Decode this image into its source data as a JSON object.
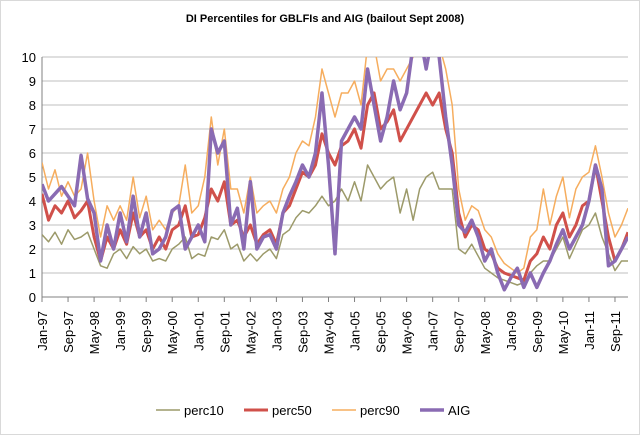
{
  "chart_data": {
    "type": "line",
    "title": "DI Percentiles for GBLFIs and AIG (bailout Sept 2008)",
    "categories": [
      "Jan-97",
      null,
      null,
      null,
      "Sep-97",
      null,
      null,
      null,
      "May-98",
      null,
      null,
      null,
      "Jan-99",
      null,
      null,
      null,
      "Sep-99",
      null,
      null,
      null,
      "May-00",
      null,
      null,
      null,
      "Jan-01",
      null,
      null,
      null,
      "Sep-01",
      null,
      null,
      null,
      "May-02",
      null,
      null,
      null,
      "Jan-03",
      null,
      null,
      null,
      "Sep-03",
      null,
      null,
      null,
      "May-04",
      null,
      null,
      null,
      "Jan-05",
      null,
      null,
      null,
      "Sep-05",
      null,
      null,
      null,
      "May-06",
      null,
      null,
      null,
      "Jan-07",
      null,
      null,
      null,
      "Sep-07",
      null,
      null,
      null,
      "May-08",
      null,
      null,
      null,
      "Jan-09",
      null,
      null,
      null,
      "Sep-09",
      null,
      null,
      null,
      "May-10",
      null,
      null,
      null,
      "Jan-11",
      null,
      null,
      null,
      "Sep-11",
      null,
      null
    ],
    "ylim": [
      0,
      10
    ],
    "yticks": [
      0,
      1,
      2,
      3,
      4,
      5,
      6,
      7,
      8,
      9,
      10
    ],
    "grid": true,
    "legend": "bottom",
    "series": [
      {
        "name": "perc10",
        "color": "#9c9a6a",
        "width": 1.5,
        "values": [
          2.6,
          2.3,
          2.7,
          2.2,
          2.8,
          2.4,
          2.5,
          2.7,
          2.0,
          1.3,
          1.2,
          1.8,
          2.0,
          1.6,
          2.1,
          1.8,
          2.0,
          1.5,
          1.6,
          1.5,
          2.0,
          2.2,
          2.5,
          1.6,
          1.8,
          1.7,
          2.5,
          2.4,
          2.8,
          2.0,
          2.2,
          1.5,
          1.8,
          1.5,
          1.8,
          2.0,
          1.6,
          2.6,
          2.8,
          3.3,
          3.6,
          3.5,
          3.8,
          4.2,
          3.8,
          4.0,
          4.5,
          4.0,
          4.8,
          4.0,
          5.5,
          5.0,
          4.5,
          4.8,
          5.0,
          3.5,
          4.5,
          3.2,
          4.5,
          5.0,
          5.2,
          4.5,
          4.5,
          4.5,
          2.0,
          1.8,
          2.2,
          1.7,
          1.2,
          1.0,
          0.8,
          0.7,
          0.6,
          0.5,
          0.6,
          1.0,
          1.3,
          1.5,
          1.5,
          2.0,
          2.5,
          1.6,
          2.2,
          2.8,
          3.0,
          3.5,
          2.5,
          1.8,
          1.1,
          1.5,
          1.5
        ]
      },
      {
        "name": "perc50",
        "color": "#d0504a",
        "width": 3,
        "values": [
          4.3,
          3.2,
          3.8,
          3.5,
          4.0,
          3.3,
          3.6,
          4.0,
          2.5,
          1.5,
          2.5,
          2.0,
          2.8,
          2.2,
          3.5,
          2.5,
          2.8,
          2.0,
          2.5,
          2.0,
          2.8,
          3.0,
          3.8,
          2.5,
          2.6,
          3.3,
          4.5,
          4.0,
          4.8,
          3.0,
          3.2,
          2.5,
          3.0,
          2.2,
          2.6,
          2.8,
          2.2,
          3.5,
          3.8,
          4.5,
          5.2,
          5.0,
          5.5,
          6.8,
          6.0,
          5.5,
          6.3,
          6.5,
          7.0,
          6.2,
          8.0,
          8.5,
          7.0,
          7.3,
          7.8,
          6.5,
          7.0,
          7.5,
          8.0,
          8.5,
          8.0,
          8.5,
          7.0,
          6.0,
          3.5,
          2.5,
          3.0,
          2.8,
          2.0,
          1.8,
          1.2,
          1.0,
          0.9,
          0.8,
          0.7,
          1.5,
          1.8,
          2.5,
          2.0,
          3.0,
          3.5,
          2.5,
          3.0,
          3.8,
          4.0,
          5.5,
          4.0,
          2.5,
          1.5,
          2.0,
          2.7
        ]
      },
      {
        "name": "perc90",
        "color": "#f6ad5e",
        "width": 1.5,
        "values": [
          5.6,
          4.5,
          5.3,
          4.2,
          4.8,
          4.2,
          4.5,
          6.0,
          4.0,
          2.5,
          3.8,
          3.2,
          3.8,
          3.2,
          5.0,
          3.3,
          4.2,
          2.8,
          3.2,
          2.8,
          3.5,
          3.8,
          5.5,
          3.5,
          3.8,
          5.0,
          7.5,
          5.5,
          7.0,
          4.5,
          4.5,
          3.5,
          5.0,
          3.5,
          3.8,
          4.0,
          3.5,
          4.5,
          5.0,
          6.0,
          6.5,
          6.3,
          7.5,
          9.5,
          8.5,
          7.5,
          8.5,
          8.5,
          9.0,
          8.0,
          10.5,
          10.5,
          9.0,
          9.5,
          9.5,
          9.0,
          9.5,
          10.0,
          10.5,
          11,
          11,
          10.5,
          9.5,
          8.0,
          4.5,
          3.2,
          3.8,
          3.6,
          2.8,
          2.5,
          1.8,
          1.4,
          1.2,
          1.0,
          1.2,
          2.5,
          2.8,
          4.5,
          3.0,
          4.2,
          5.0,
          3.3,
          4.5,
          5.0,
          5.2,
          6.3,
          5.0,
          3.5,
          2.5,
          3.0,
          3.7
        ]
      },
      {
        "name": "AIG",
        "color": "#8a6bb3",
        "width": 3.5,
        "values": [
          4.7,
          4.0,
          4.3,
          4.6,
          4.2,
          3.8,
          5.9,
          4.1,
          3.5,
          1.5,
          3.0,
          2.0,
          3.5,
          2.3,
          4.2,
          2.5,
          3.5,
          1.8,
          2.0,
          2.5,
          3.6,
          3.8,
          2.0,
          2.5,
          3.0,
          2.3,
          7.0,
          6.0,
          6.5,
          3.0,
          3.7,
          2.0,
          4.8,
          2.0,
          2.5,
          2.6,
          2.0,
          3.5,
          4.2,
          4.8,
          5.5,
          5.0,
          6.0,
          8.5,
          5.5,
          1.8,
          6.5,
          7.0,
          7.5,
          7.0,
          9.5,
          8.0,
          6.5,
          7.5,
          9.0,
          7.8,
          8.5,
          10.5,
          11,
          9.5,
          11,
          10,
          7.5,
          5.5,
          3.0,
          2.7,
          3.2,
          2.5,
          1.5,
          2.0,
          1.0,
          0.3,
          0.8,
          1.2,
          0.4,
          1.0,
          0.4,
          1.0,
          1.5,
          2.2,
          2.8,
          2.0,
          2.5,
          3.0,
          4.0,
          5.5,
          4.5,
          1.3,
          1.5,
          2.0,
          2.5
        ]
      }
    ]
  }
}
